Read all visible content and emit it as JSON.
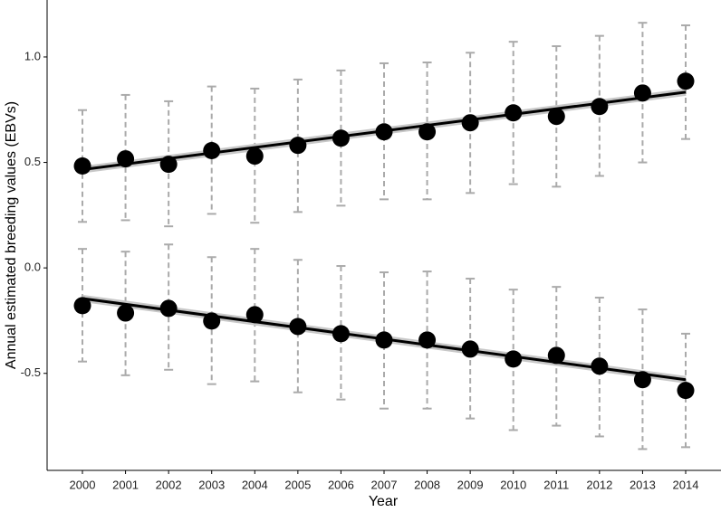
{
  "chart_data": {
    "type": "scatter",
    "xlabel": "Year",
    "ylabel": "Annual estimated breeding values (EBVs)",
    "x": [
      2000,
      2001,
      2002,
      2003,
      2004,
      2005,
      2006,
      2007,
      2008,
      2009,
      2010,
      2011,
      2012,
      2013,
      2014
    ],
    "xlim": [
      1999.18,
      2014.82
    ],
    "xticks": [
      2000,
      2001,
      2002,
      2003,
      2004,
      2005,
      2006,
      2007,
      2008,
      2009,
      2010,
      2011,
      2012,
      2013,
      2014
    ],
    "ylim": [
      -0.96,
      1.27
    ],
    "yticks": [
      {
        "value": -0.5,
        "label": "-0.5"
      },
      {
        "value": 0,
        "label": "0.0"
      },
      0.5,
      {
        "value": 1,
        "label": "1.0"
      }
    ],
    "error_bar_color": "#aaaaaa",
    "trend_band_color": "#c8c8c8",
    "series": [
      {
        "color": "#000000",
        "values": [
          0.483,
          0.517,
          0.491,
          0.556,
          0.53,
          0.581,
          0.615,
          0.645,
          0.645,
          0.688,
          0.735,
          0.718,
          0.765,
          0.829,
          0.885
        ],
        "upper": [
          0.748,
          0.82,
          0.79,
          0.86,
          0.85,
          0.893,
          0.936,
          0.97,
          0.974,
          1.02,
          1.072,
          1.051,
          1.1,
          1.162,
          1.15
        ],
        "lower": [
          0.218,
          0.226,
          0.197,
          0.256,
          0.214,
          0.265,
          0.295,
          0.325,
          0.325,
          0.355,
          0.397,
          0.385,
          0.436,
          0.5,
          0.611
        ],
        "trend": [
          0.466,
          0.833
        ]
      },
      {
        "color": "#000000",
        "values": [
          -0.179,
          -0.214,
          -0.192,
          -0.252,
          -0.222,
          -0.278,
          -0.312,
          -0.342,
          -0.342,
          -0.385,
          -0.432,
          -0.415,
          -0.466,
          -0.53,
          -0.581
        ],
        "upper": [
          0.09,
          0.077,
          0.111,
          0.051,
          0.09,
          0.038,
          0.009,
          -0.021,
          -0.017,
          -0.051,
          -0.103,
          -0.09,
          -0.141,
          -0.197,
          -0.312
        ],
        "lower": [
          -0.444,
          -0.509,
          -0.483,
          -0.551,
          -0.538,
          -0.59,
          -0.624,
          -0.667,
          -0.667,
          -0.714,
          -0.769,
          -0.748,
          -0.799,
          -0.859,
          -0.85
        ],
        "trend": [
          -0.145,
          -0.53
        ]
      }
    ]
  }
}
